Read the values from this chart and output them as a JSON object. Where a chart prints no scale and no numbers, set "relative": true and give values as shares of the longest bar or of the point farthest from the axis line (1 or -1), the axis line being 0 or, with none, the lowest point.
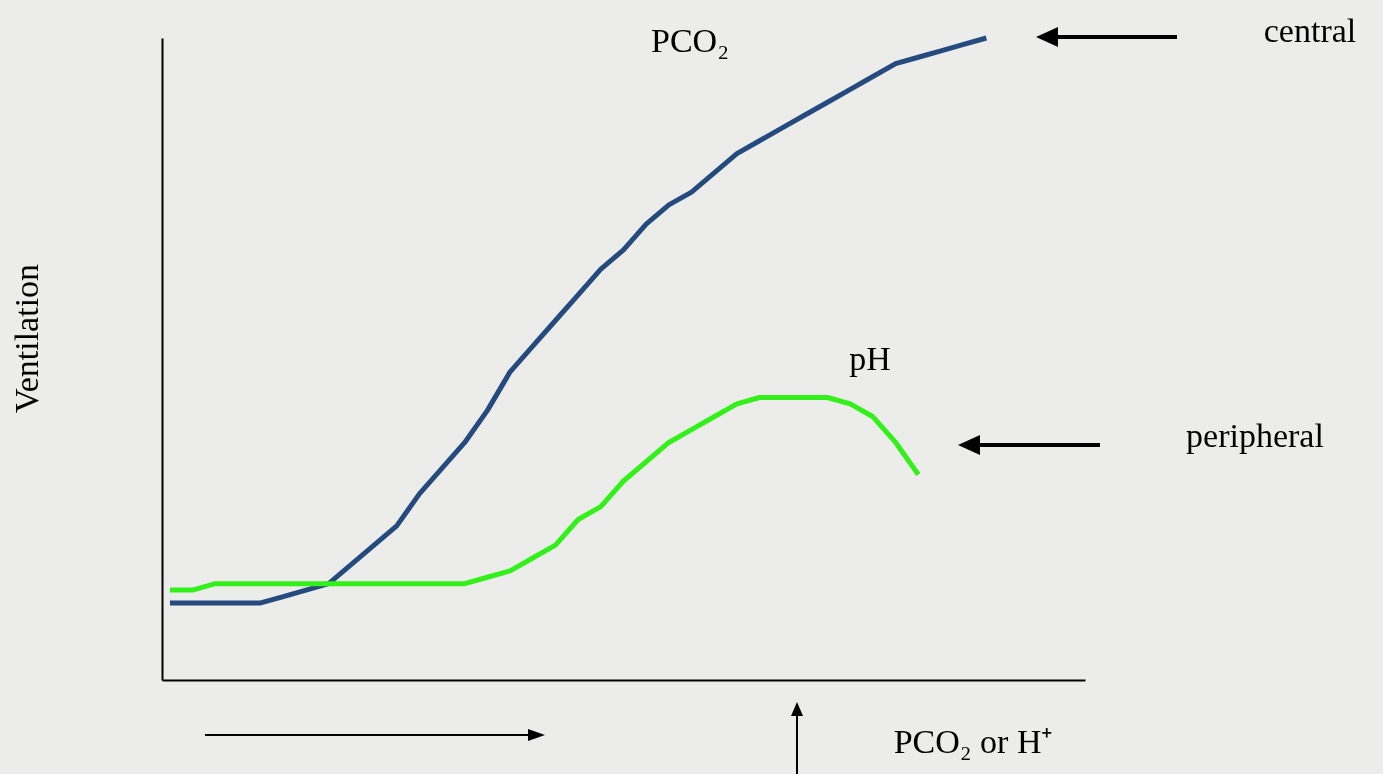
{
  "chart_data": {
    "type": "line",
    "relative": true,
    "ylabel": "Ventilation",
    "xlabel": "PCO₂ or H⁺",
    "annotations": [
      "central",
      "peripheral"
    ],
    "legend": false,
    "marker": "none",
    "line_style": "solid",
    "categories": [
      null,
      null,
      null,
      null,
      null,
      null,
      null,
      null,
      null,
      null,
      null,
      null,
      null,
      null,
      null,
      null,
      null,
      null,
      null,
      null,
      null,
      null,
      null,
      null,
      null,
      null,
      null,
      null,
      null,
      null,
      null,
      null,
      null,
      null,
      null,
      null,
      null,
      null,
      null,
      null,
      null
    ],
    "series": [
      {
        "name": "PCO₂",
        "color": "#254a7e",
        "values": [
          0.12,
          0.12,
          0.12,
          0.12,
          0.12,
          0.13,
          0.14,
          0.15,
          0.18,
          0.21,
          0.24,
          0.29,
          0.33,
          0.37,
          0.42,
          0.48,
          0.52,
          0.56,
          0.6,
          0.64,
          0.67,
          0.71,
          0.74,
          0.76,
          0.79,
          0.82,
          0.84,
          0.86,
          0.88,
          0.9,
          0.92,
          0.94,
          0.96,
          0.97,
          0.98,
          0.99,
          1,
          null,
          null,
          null,
          null
        ]
      },
      {
        "name": "pH",
        "color": "#33f01a",
        "values": [
          0.14,
          0.14,
          0.15,
          0.15,
          0.15,
          0.15,
          0.15,
          0.15,
          0.15,
          0.15,
          0.15,
          0.15,
          0.15,
          0.15,
          0.16,
          0.17,
          0.19,
          0.21,
          0.25,
          0.27,
          0.31,
          0.34,
          0.37,
          0.39,
          0.41,
          0.43,
          0.44,
          0.44,
          0.44,
          0.44,
          0.43,
          0.41,
          0.37,
          0.32,
          null,
          null,
          null,
          null,
          null,
          null,
          null
        ]
      }
    ]
  }
}
